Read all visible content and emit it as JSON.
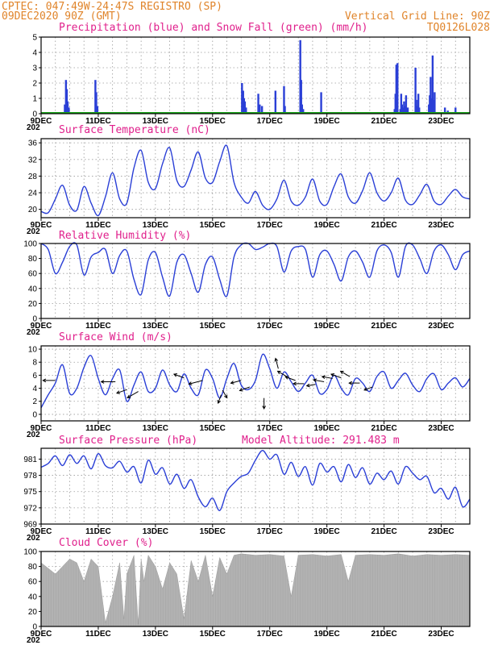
{
  "header": {
    "line1_left": "CPTEC:  047:49W-24:47S  REGISTRO (SP)",
    "line2_left": "09DEC2020 90Z (GMT)",
    "line2_right": "Vertical Grid Line: 90Z",
    "line3_right": "TQ0126L028"
  },
  "x_ticks": [
    "9DEC",
    "11DEC",
    "13DEC",
    "15DEC",
    "17DEC",
    "19DEC",
    "21DEC",
    "23DEC"
  ],
  "year_stub": "202",
  "colors": {
    "header": "#e0842a",
    "title": "#e0208c",
    "line": "#2a3fd6",
    "snow": "#1aa51a",
    "cloud": "#ababab"
  },
  "chart_data": [
    {
      "type": "bar",
      "title": "Precipitation (blue) and Snow Fall (green) (mm/h)",
      "ylim": [
        0,
        5
      ],
      "yticks": [
        0,
        1,
        2,
        3,
        4,
        5
      ],
      "x_days": [
        0.83,
        0.87,
        0.9,
        0.93,
        0.97,
        1.9,
        1.93,
        1.97,
        7.03,
        7.07,
        7.1,
        7.13,
        7.17,
        7.6,
        7.65,
        7.73,
        8.2,
        8.5,
        8.53,
        9.07,
        9.1,
        9.13,
        9.17,
        9.8,
        12.37,
        12.4,
        12.43,
        12.47,
        12.57,
        12.6,
        12.63,
        12.67,
        12.7,
        12.73,
        12.77,
        12.8,
        12.83,
        13.1,
        13.13,
        13.17,
        13.2,
        13.23,
        13.57,
        13.6,
        13.63,
        13.67,
        13.7,
        13.73,
        13.77,
        14.13,
        14.23,
        14.5
      ],
      "series": [
        {
          "name": "Precipitation",
          "values": [
            0.6,
            2.2,
            1.6,
            0.8,
            0.4,
            2.2,
            1.4,
            0.5,
            2.0,
            1.5,
            1.0,
            0.8,
            0.4,
            1.3,
            0.6,
            0.5,
            1.5,
            1.8,
            0.5,
            4.8,
            2.2,
            0.6,
            0.3,
            1.4,
            0.3,
            1.3,
            3.2,
            3.3,
            0.3,
            1.3,
            0.6,
            0.4,
            0.8,
            0.5,
            1.2,
            0.3,
            0.4,
            3.0,
            0.9,
            0.5,
            1.3,
            0.4,
            0.6,
            1.2,
            2.4,
            1.0,
            3.8,
            0.9,
            1.4,
            0.4,
            0.2,
            0.4
          ]
        },
        {
          "name": "Snow Fall",
          "values": []
        }
      ]
    },
    {
      "type": "line",
      "title": "Surface Temperature (nC)",
      "ylim": [
        18,
        37
      ],
      "yticks": [
        20,
        24,
        28,
        32,
        36
      ],
      "x": [
        0,
        0.25,
        0.5,
        0.75,
        1,
        1.25,
        1.5,
        1.75,
        2,
        2.25,
        2.5,
        2.75,
        3,
        3.25,
        3.5,
        3.75,
        4,
        4.25,
        4.5,
        4.75,
        5,
        5.25,
        5.5,
        5.75,
        6,
        6.25,
        6.5,
        6.75,
        7,
        7.25,
        7.5,
        7.75,
        8,
        8.25,
        8.5,
        8.75,
        9,
        9.25,
        9.5,
        9.75,
        10,
        10.25,
        10.5,
        10.75,
        11,
        11.25,
        11.5,
        11.75,
        12,
        12.25,
        12.5,
        12.75,
        13,
        13.25,
        13.5,
        13.75,
        14,
        14.25,
        14.5,
        14.75,
        15
      ],
      "series": [
        {
          "name": "Temperature",
          "values": [
            19.5,
            19.2,
            22.5,
            25.8,
            21,
            19.8,
            25.5,
            21.5,
            18.5,
            23,
            28.8,
            22.5,
            21.5,
            30,
            34.2,
            26.5,
            25,
            31,
            34.8,
            27,
            25.5,
            29.5,
            33.8,
            27.5,
            26.5,
            31.5,
            35.3,
            26.5,
            23,
            21.5,
            24.3,
            21,
            20,
            22.5,
            27,
            22,
            21,
            23,
            27.3,
            22,
            21.2,
            25.5,
            28.5,
            23,
            21.5,
            24.5,
            28.8,
            24,
            22,
            24,
            27.5,
            22.2,
            21.2,
            23.5,
            26,
            22,
            21.2,
            23.2,
            24.8,
            23,
            22.5
          ]
        }
      ]
    },
    {
      "type": "line",
      "title": "Relative Humidity (%)",
      "ylim": [
        0,
        100
      ],
      "yticks": [
        0,
        20,
        40,
        60,
        80,
        100
      ],
      "x": [
        0,
        0.25,
        0.5,
        0.75,
        1,
        1.25,
        1.5,
        1.75,
        2,
        2.25,
        2.5,
        2.75,
        3,
        3.25,
        3.5,
        3.75,
        4,
        4.25,
        4.5,
        4.75,
        5,
        5.25,
        5.5,
        5.75,
        6,
        6.25,
        6.5,
        6.75,
        7,
        7.25,
        7.5,
        7.75,
        8,
        8.25,
        8.5,
        8.75,
        9,
        9.25,
        9.5,
        9.75,
        10,
        10.25,
        10.5,
        10.75,
        11,
        11.25,
        11.5,
        11.75,
        12,
        12.25,
        12.5,
        12.75,
        13,
        13.25,
        13.5,
        13.75,
        14,
        14.25,
        14.5,
        14.75,
        15
      ],
      "series": [
        {
          "name": "Humidity",
          "values": [
            100,
            92,
            60,
            75,
            96,
            98,
            58,
            82,
            88,
            92,
            60,
            84,
            90,
            52,
            32,
            78,
            88,
            55,
            30,
            75,
            85,
            60,
            35,
            72,
            82,
            52,
            30,
            82,
            98,
            100,
            92,
            95,
            100,
            96,
            62,
            90,
            96,
            92,
            55,
            85,
            90,
            72,
            50,
            82,
            90,
            75,
            55,
            90,
            98,
            88,
            55,
            96,
            98,
            80,
            60,
            90,
            98,
            85,
            65,
            85,
            90
          ]
        }
      ]
    },
    {
      "type": "line",
      "title": "Surface Wind (m/s)",
      "ylim": [
        -1,
        10.5
      ],
      "yticks": [
        0,
        2,
        4,
        6,
        8,
        10
      ],
      "x": [
        0,
        0.25,
        0.5,
        0.75,
        1,
        1.25,
        1.5,
        1.75,
        2,
        2.25,
        2.5,
        2.75,
        3,
        3.25,
        3.5,
        3.75,
        4,
        4.25,
        4.5,
        4.75,
        5,
        5.25,
        5.5,
        5.75,
        6,
        6.25,
        6.5,
        6.75,
        7,
        7.25,
        7.5,
        7.75,
        8,
        8.25,
        8.5,
        8.75,
        9,
        9.25,
        9.5,
        9.75,
        10,
        10.25,
        10.5,
        10.75,
        11,
        11.25,
        11.5,
        11.75,
        12,
        12.25,
        12.5,
        12.75,
        13,
        13.25,
        13.5,
        13.75,
        14,
        14.25,
        14.5,
        14.75,
        15
      ],
      "series": [
        {
          "name": "Wind speed",
          "values": [
            1,
            3,
            4.8,
            7.6,
            3.2,
            4,
            7.2,
            9,
            5.5,
            3,
            5.5,
            6.8,
            2,
            4.5,
            6.5,
            3.5,
            4,
            6.8,
            4.5,
            3.5,
            6.2,
            4,
            3,
            6.8,
            5.5,
            2.5,
            5.5,
            7.8,
            4.5,
            3.8,
            5.2,
            9.2,
            7,
            4,
            6.5,
            5,
            3.5,
            4.8,
            6,
            3.2,
            3.8,
            6,
            4,
            3,
            5.5,
            4.8,
            3.5,
            5.8,
            6.5,
            4,
            5.2,
            6.3,
            4.5,
            3.5,
            5.5,
            6.2,
            3.8,
            4.8,
            5.6,
            4.2,
            5.5
          ]
        }
      ]
    },
    {
      "type": "line",
      "title": "Surface Pressure (hPa)",
      "subtitle": "Model Altitude: 291.483 m",
      "ylim": [
        969,
        983
      ],
      "yticks": [
        969,
        972,
        975,
        978,
        981
      ],
      "x": [
        0,
        0.25,
        0.5,
        0.75,
        1,
        1.25,
        1.5,
        1.75,
        2,
        2.25,
        2.5,
        2.75,
        3,
        3.25,
        3.5,
        3.75,
        4,
        4.25,
        4.5,
        4.75,
        5,
        5.25,
        5.5,
        5.75,
        6,
        6.25,
        6.5,
        6.75,
        7,
        7.25,
        7.5,
        7.75,
        8,
        8.25,
        8.5,
        8.75,
        9,
        9.25,
        9.5,
        9.75,
        10,
        10.25,
        10.5,
        10.75,
        11,
        11.25,
        11.5,
        11.75,
        12,
        12.25,
        12.5,
        12.75,
        13,
        13.25,
        13.5,
        13.75,
        14,
        14.25,
        14.5,
        14.75,
        15
      ],
      "series": [
        {
          "name": "Pressure",
          "values": [
            979.5,
            980.2,
            981.6,
            979.8,
            981.8,
            980.2,
            981.6,
            979.2,
            982,
            979.8,
            979.4,
            980.6,
            978.6,
            979.6,
            976.6,
            980.8,
            978.2,
            979.4,
            976.4,
            978.2,
            975.6,
            977.2,
            974,
            972.2,
            973.8,
            971.5,
            975,
            976.6,
            977.8,
            978.4,
            980.8,
            982.6,
            981,
            981.8,
            978.2,
            980.4,
            977.8,
            979.6,
            976.2,
            980.2,
            978.6,
            979.6,
            976.8,
            980,
            977.6,
            979.4,
            976.4,
            978.4,
            977.2,
            978.8,
            976.4,
            979.6,
            978.4,
            977.2,
            977.8,
            974.8,
            975.6,
            973.6,
            975.8,
            972.2,
            973.6
          ]
        }
      ]
    },
    {
      "type": "area",
      "title": "Cloud Cover (%)",
      "ylim": [
        0,
        100
      ],
      "yticks": [
        0,
        20,
        40,
        60,
        80,
        100
      ],
      "x": [
        0,
        0.5,
        1,
        1.25,
        1.5,
        1.75,
        2,
        2.25,
        2.5,
        2.75,
        2.9,
        3,
        3.25,
        3.4,
        3.5,
        3.6,
        3.75,
        4,
        4.25,
        4.5,
        4.75,
        5,
        5.25,
        5.5,
        5.75,
        6,
        6.25,
        6.5,
        6.75,
        7,
        7.5,
        8,
        8.5,
        8.75,
        9,
        9.5,
        10,
        10.5,
        10.75,
        11,
        11.5,
        12,
        12.5,
        13,
        13.5,
        14,
        14.5,
        15
      ],
      "series": [
        {
          "name": "Cloud",
          "values": [
            85,
            70,
            90,
            85,
            60,
            90,
            80,
            5,
            40,
            85,
            10,
            70,
            95,
            3,
            90,
            60,
            95,
            80,
            50,
            85,
            70,
            10,
            88,
            60,
            95,
            40,
            92,
            70,
            95,
            97,
            95,
            96,
            94,
            40,
            95,
            96,
            94,
            96,
            60,
            95,
            96,
            95,
            97,
            94,
            96,
            95,
            96,
            95
          ]
        }
      ]
    }
  ]
}
